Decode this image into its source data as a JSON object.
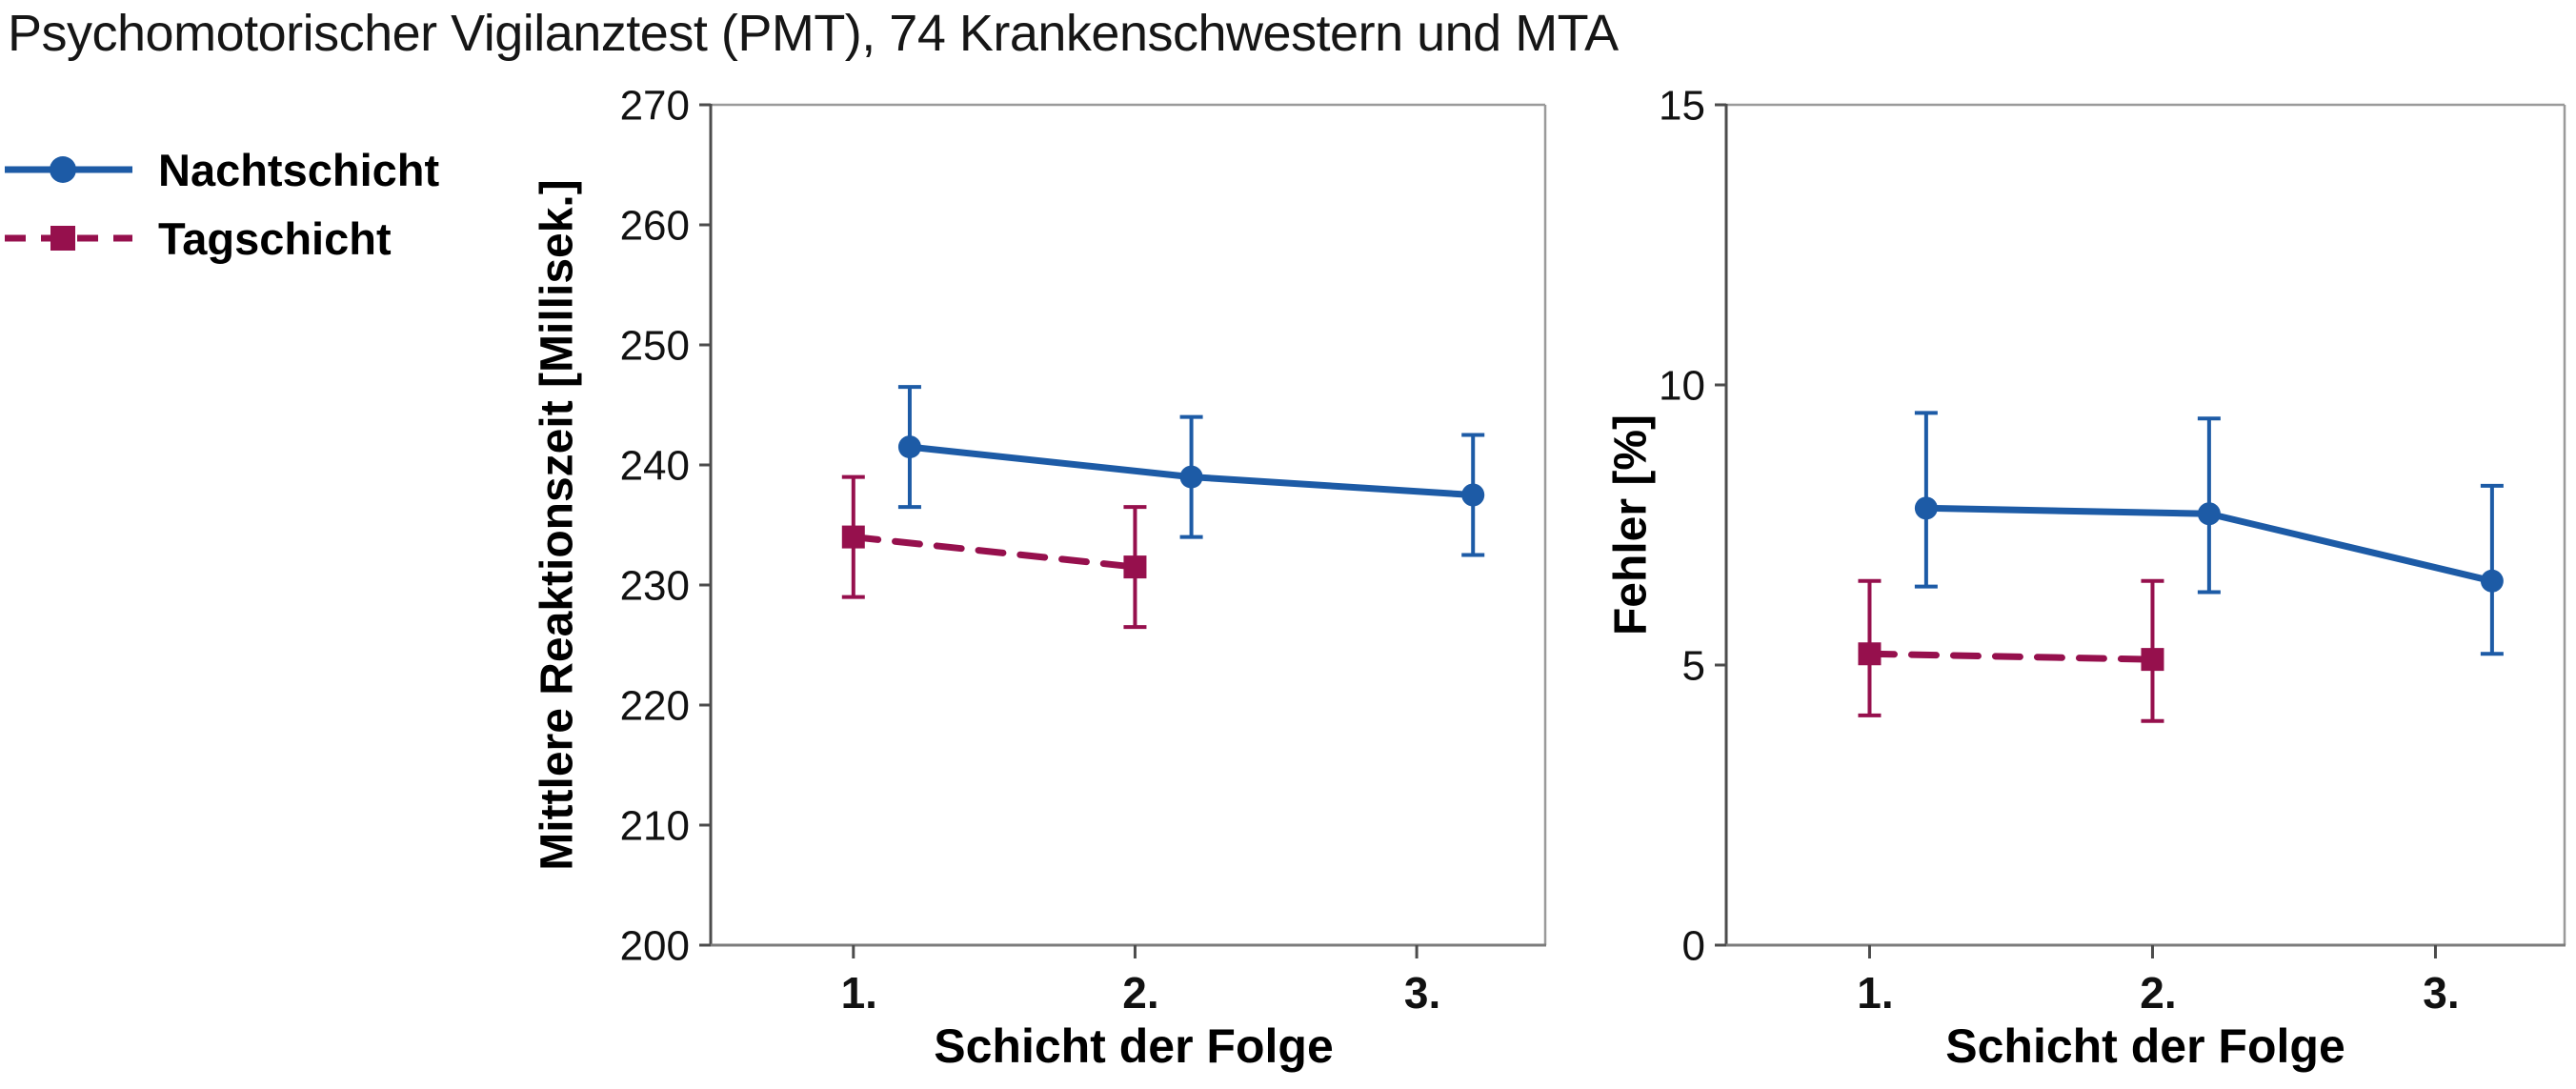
{
  "title": "Psychomotorischer Vigilanztest (PMT), 74 Krankenschwestern und MTA",
  "colors": {
    "nachtschicht": "#1d5ba6",
    "tagschicht": "#96104d",
    "axis_dark": "#4c4c4c",
    "axis_light": "#9a9a9a",
    "tick_text": "#111111"
  },
  "legend": [
    {
      "label": "Nachtschicht",
      "color": "#1d5ba6",
      "marker": "circle",
      "line": "solid"
    },
    {
      "label": "Tagschicht",
      "color": "#96104d",
      "marker": "square",
      "line": "dashed"
    }
  ],
  "chart_data": [
    {
      "type": "line",
      "title": "",
      "xlabel": "Schicht der Folge",
      "ylabel": "Mittlere Reaktionszeit [Millisek.]",
      "x_tick_labels": [
        "1.",
        "2.",
        "3."
      ],
      "ylim": [
        200,
        270
      ],
      "yticks": [
        270,
        260,
        250,
        240,
        230,
        220,
        210,
        200
      ],
      "grid": false,
      "legend_position": "top-left-outside",
      "series": [
        {
          "name": "Nachtschicht",
          "x": [
            1,
            2,
            3
          ],
          "y": [
            241.5,
            239.0,
            237.5
          ],
          "err_upper": [
            246.5,
            244.0,
            242.5
          ],
          "err_lower": [
            236.5,
            234.0,
            232.5
          ],
          "x_offset": 0.2
        },
        {
          "name": "Tagschicht",
          "x": [
            1,
            2
          ],
          "y": [
            234.0,
            231.5
          ],
          "err_upper": [
            239.0,
            236.5
          ],
          "err_lower": [
            229.0,
            226.5
          ],
          "x_offset": 0
        }
      ]
    },
    {
      "type": "line",
      "title": "",
      "xlabel": "Schicht der Folge",
      "ylabel": "Fehler [%]",
      "x_tick_labels": [
        "1.",
        "2.",
        "3."
      ],
      "ylim": [
        0,
        15
      ],
      "yticks": [
        15,
        10,
        5,
        0
      ],
      "grid": false,
      "legend_position": "shared",
      "series": [
        {
          "name": "Nachtschicht",
          "x": [
            1,
            2,
            3
          ],
          "y": [
            7.8,
            7.7,
            6.5
          ],
          "err_upper": [
            9.5,
            9.4,
            8.2
          ],
          "err_lower": [
            6.4,
            6.3,
            5.2
          ],
          "x_offset": 0.2
        },
        {
          "name": "Tagschicht",
          "x": [
            1,
            2
          ],
          "y": [
            5.2,
            5.1
          ],
          "err_upper": [
            6.5,
            6.5
          ],
          "err_lower": [
            4.1,
            4.0
          ],
          "x_offset": 0
        }
      ]
    }
  ]
}
